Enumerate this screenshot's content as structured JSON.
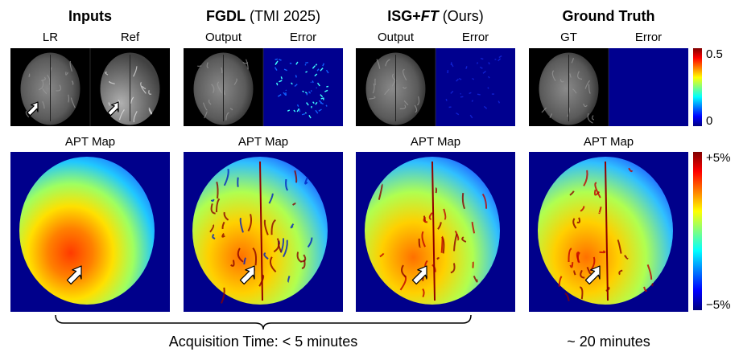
{
  "columns": [
    {
      "title": [
        {
          "text": "Inputs",
          "bold": true,
          "italic": false
        }
      ],
      "panels": [
        "LR",
        "Ref"
      ],
      "map_label": "APT Map"
    },
    {
      "title": [
        {
          "text": "FGDL",
          "bold": true,
          "italic": false
        },
        {
          "text": " (TMI 2025)",
          "bold": false,
          "italic": false
        }
      ],
      "panels": [
        "Output",
        "Error"
      ],
      "map_label": "APT Map"
    },
    {
      "title": [
        {
          "text": "ISG+",
          "bold": true,
          "italic": false
        },
        {
          "text": "FT",
          "bold": true,
          "italic": true
        },
        {
          "text": " (Ours)",
          "bold": false,
          "italic": false
        }
      ],
      "panels": [
        "Output",
        "Error"
      ],
      "map_label": "APT Map"
    },
    {
      "title": [
        {
          "text": "Ground Truth",
          "bold": true,
          "italic": false
        }
      ],
      "panels": [
        "GT",
        "Error"
      ],
      "map_label": "APT Map"
    }
  ],
  "colorbars": [
    {
      "max": "0.5",
      "min": "0"
    },
    {
      "max": "+5%",
      "min": "−5%"
    }
  ],
  "footer": {
    "acquisition_time": "Acquisition Time: < 5 minutes",
    "gt_time": "~ 20 minutes"
  }
}
